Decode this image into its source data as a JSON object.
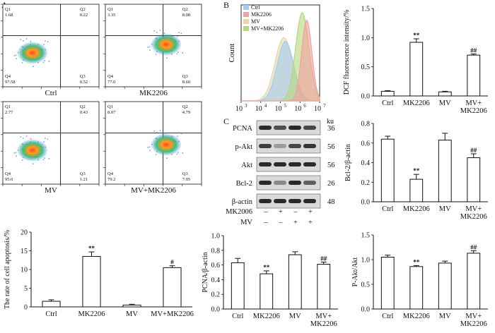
{
  "panel_labels": {
    "a": "A",
    "b": "B",
    "c": "C"
  },
  "colors": {
    "ink": "#111111",
    "bar_fill": "#ffffff",
    "blot_band": "#2b2b2b",
    "blot_bg": "#d9d9d9"
  },
  "flow_plots": [
    {
      "caption": "Ctrl",
      "quadrants": {
        "q1": "1.68",
        "q2": "0.22",
        "q3": "0.52",
        "q4": "97.58"
      }
    },
    {
      "caption": "MK2206",
      "quadrants": {
        "q1": "3.35",
        "q2": "8.08",
        "q3": "8.60",
        "q4": "77.0"
      }
    },
    {
      "caption": "MV",
      "quadrants": {
        "q1": "2.77",
        "q2": "0.43",
        "q3": "1.21",
        "q4": "95.6"
      }
    },
    {
      "caption": "MV+MK2206",
      "quadrants": {
        "q1": "8.07",
        "q2": "4.79",
        "q3": "7.95",
        "q4": "79.2"
      }
    }
  ],
  "quadrant_names": {
    "q1": "Q1",
    "q2": "Q2",
    "q3": "Q3",
    "q4": "Q4"
  },
  "western_blot": {
    "unit_header": "ku",
    "rows": [
      {
        "label": "PCNA",
        "kd": "36"
      },
      {
        "label": "p-Akt",
        "kd": "56"
      },
      {
        "label": "Akt",
        "kd": "56"
      },
      {
        "label": "Bcl-2",
        "kd": "26"
      },
      {
        "label": "β-actin",
        "kd": "48"
      }
    ],
    "treatments": [
      {
        "name": "MK2006",
        "signs": [
          "–",
          "+",
          "–",
          "+"
        ]
      },
      {
        "name": "MV",
        "signs": [
          "–",
          "–",
          "+",
          "+"
        ]
      }
    ]
  },
  "chart_data": [
    {
      "id": "apoptosis",
      "type": "bar",
      "title": "",
      "xlabel": "",
      "ylabel": "The rate of cell apoptosis/%",
      "categories": [
        "Ctrl",
        "MK2206",
        "MV",
        "MV+MK2206"
      ],
      "values": [
        1.5,
        13.5,
        0.5,
        10.5
      ],
      "errors": [
        0.4,
        1.2,
        0.2,
        0.5
      ],
      "significance": [
        "",
        "**",
        "",
        "#"
      ],
      "ylim": [
        0,
        20
      ],
      "grid": false
    },
    {
      "id": "flow_histogram",
      "type": "area",
      "title": "",
      "xlabel": "",
      "ylabel": "Count",
      "xscale": "log",
      "xlim": [
        1000,
        10000000
      ],
      "x_ticks": [
        "10",
        "10",
        "10",
        "10",
        "10"
      ],
      "x_tick_exponents": [
        "3",
        "4",
        "5",
        "6",
        "7"
      ],
      "legend": [
        "Ctrl",
        "MK2206",
        "MV",
        "MV+MK2206"
      ],
      "legend_position": "top-left",
      "series": [
        {
          "name": "Ctrl",
          "color": "#9fcdf0",
          "peak_x": 180000
        },
        {
          "name": "MK2206",
          "color": "#f2a0a0",
          "peak_x": 2200000
        },
        {
          "name": "MV",
          "color": "#ead6a6",
          "peak_x": 150000
        },
        {
          "name": "MV+MK2206",
          "color": "#b8d77a",
          "peak_x": 1300000
        }
      ],
      "grid": false
    },
    {
      "id": "dcf",
      "type": "bar",
      "title": "",
      "xlabel": "",
      "ylabel": "DCF fluorescence intensity/%",
      "categories": [
        "Ctrl",
        "MK2206",
        "MV",
        "MV+\nMK2206"
      ],
      "values": [
        0.08,
        0.92,
        0.07,
        0.7
      ],
      "errors": [
        0.01,
        0.06,
        0.01,
        0.02
      ],
      "significance": [
        "",
        "**",
        "",
        "##"
      ],
      "ylim": [
        0,
        1.5
      ],
      "y_ticks": [
        "0.0",
        "0.5",
        "1.0",
        "1.5"
      ],
      "grid": false
    },
    {
      "id": "bcl2",
      "type": "bar",
      "title": "",
      "xlabel": "",
      "ylabel": "Bcl-2/β-actin",
      "categories": [
        "Ctrl",
        "MK2206",
        "MV",
        "MV+\nMK2206"
      ],
      "values": [
        0.64,
        0.23,
        0.63,
        0.45
      ],
      "errors": [
        0.03,
        0.05,
        0.07,
        0.04
      ],
      "significance": [
        "",
        "**",
        "",
        "##"
      ],
      "ylim": [
        0,
        0.8
      ],
      "y_ticks": [
        "0.0",
        "0.2",
        "0.4",
        "0.6",
        "0.8"
      ],
      "grid": false
    },
    {
      "id": "pcna",
      "type": "bar",
      "title": "",
      "xlabel": "",
      "ylabel": "PCNA/β-actin",
      "categories": [
        "Ctrl",
        "MK2206",
        "MV",
        "MV+\nMK2206"
      ],
      "values": [
        0.63,
        0.48,
        0.74,
        0.61
      ],
      "errors": [
        0.06,
        0.04,
        0.04,
        0.03
      ],
      "significance": [
        "",
        "**",
        "",
        "##"
      ],
      "ylim": [
        0,
        1.0
      ],
      "y_ticks": [
        "0.0",
        "0.2",
        "0.4",
        "0.6",
        "0.8",
        "1.0"
      ],
      "grid": false
    },
    {
      "id": "pakt",
      "type": "bar",
      "title": "",
      "xlabel": "",
      "ylabel": "P-Akt/Akt",
      "categories": [
        "Ctrl",
        "MK2206",
        "MV",
        "MV+\nMK2206"
      ],
      "values": [
        1.05,
        0.86,
        0.93,
        1.13
      ],
      "errors": [
        0.04,
        0.02,
        0.04,
        0.05
      ],
      "significance": [
        "",
        "**",
        "",
        "##"
      ],
      "ylim": [
        0,
        1.5
      ],
      "y_ticks": [
        "0.0",
        "0.5",
        "1.0",
        "1.5"
      ],
      "grid": false
    }
  ]
}
